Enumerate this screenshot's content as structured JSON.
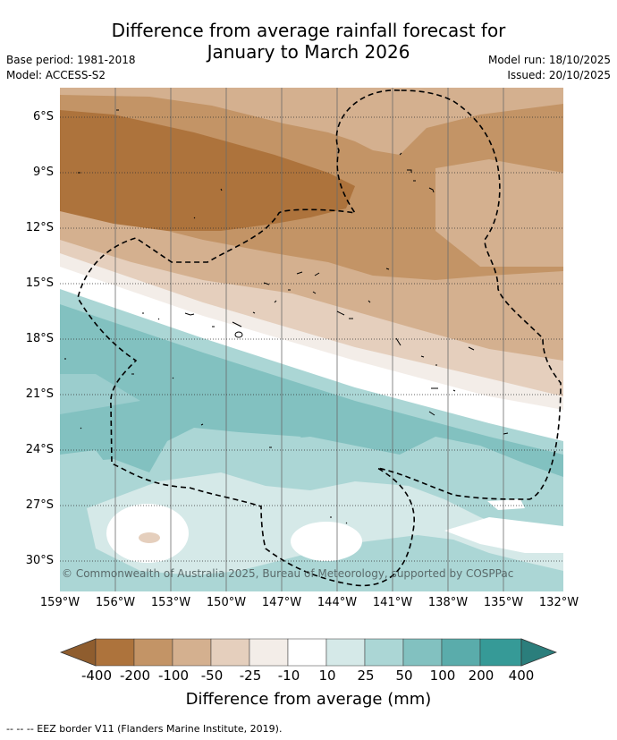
{
  "title_line1": "Difference from average rainfall forecast for",
  "title_line2": "January to March 2026",
  "base_period": "Base period: 1981-2018",
  "model": "Model: ACCESS-S2",
  "model_run": "Model run: 18/10/2025",
  "issued": "Issued: 20/10/2025",
  "copyright": "© Commonwealth of Australia 2025, Bureau of Meteorology, supported by COSPPac",
  "lat_labels": [
    "6°S",
    "9°S",
    "12°S",
    "15°S",
    "18°S",
    "21°S",
    "24°S",
    "27°S",
    "30°S"
  ],
  "lon_labels": [
    "159°W",
    "156°W",
    "153°W",
    "150°W",
    "147°W",
    "144°W",
    "141°W",
    "138°W",
    "135°W",
    "132°W"
  ],
  "colorbar": {
    "title": "Difference from average (mm)",
    "tick_labels": [
      "-400",
      "-200",
      "-100",
      "-50",
      "-25",
      "-10",
      "10",
      "25",
      "50",
      "100",
      "200",
      "400"
    ],
    "colors": [
      "#8f5d2e",
      "#ad733c",
      "#c39466",
      "#d4b08f",
      "#e5cfbd",
      "#f3ede8",
      "#ffffff",
      "#d5e9e8",
      "#abd6d5",
      "#82c1c0",
      "#5aacab",
      "#369a97",
      "#2b7e7c"
    ]
  },
  "legend_text": "--  --  -- EEZ border V11 (Flanders Marine Institute, 2019)."
}
